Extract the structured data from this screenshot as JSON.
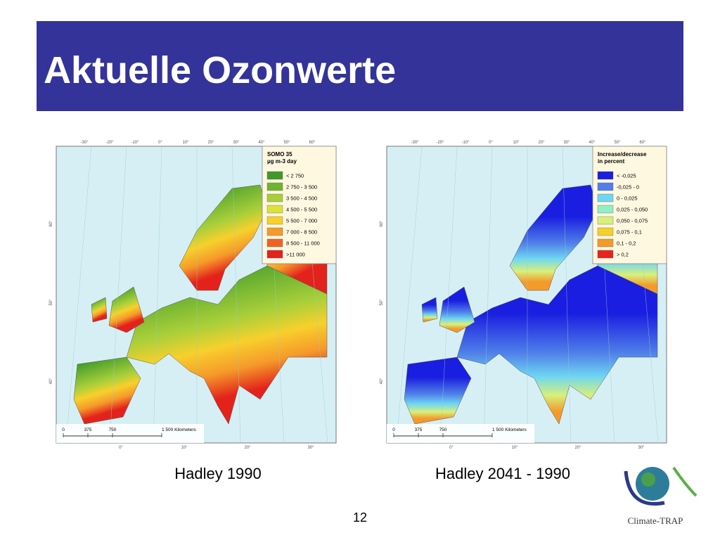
{
  "title": "Aktuelle Ozonwerte",
  "page_number": "12",
  "logo_text": "Climate-TRAP",
  "maps": [
    {
      "caption": "Hadley 1990",
      "legend_title": [
        "SOMO 35",
        "µg m-3 day"
      ],
      "legend": [
        {
          "label": "< 2 750",
          "color": "#3e9a2a"
        },
        {
          "label": "2 750 - 3 500",
          "color": "#6fb42c"
        },
        {
          "label": "3 500 - 4 500",
          "color": "#a8cf3a"
        },
        {
          "label": "4 500 - 5 500",
          "color": "#dde23a"
        },
        {
          "label": "5 500 - 7 000",
          "color": "#f7d02c"
        },
        {
          "label": "7 000 - 8 500",
          "color": "#f59a2a"
        },
        {
          "label": "8 500 - 11 000",
          "color": "#ee6325"
        },
        {
          "label": ">11 000",
          "color": "#e3221c"
        }
      ],
      "top_labels": [
        "-30°",
        "-20°",
        "-10°",
        "0°",
        "10°",
        "20°",
        "30°",
        "40°",
        "50°",
        "60°"
      ],
      "bottom_labels": [
        "0°",
        "10°",
        "20°",
        "30°"
      ],
      "side_labels": [
        "60°",
        "50°",
        "40°"
      ],
      "scale_labels": [
        "0",
        "375",
        "750",
        "1 500 Kilometers"
      ]
    },
    {
      "caption": "Hadley 2041 - 1990",
      "legend_title": [
        "Increase/decrease",
        "in percent"
      ],
      "legend": [
        {
          "label": "< -0,025",
          "color": "#1a1ee0"
        },
        {
          "label": "-0,025 - 0",
          "color": "#4f7fe8"
        },
        {
          "label": "0 - 0,025",
          "color": "#6fd6f2"
        },
        {
          "label": "0,025 - 0,050",
          "color": "#8ff0c6"
        },
        {
          "label": "0,050 - 0,075",
          "color": "#d8f07a"
        },
        {
          "label": "0,075 - 0,1",
          "color": "#f6d02a"
        },
        {
          "label": "0,1 - 0,2",
          "color": "#f39a2a"
        },
        {
          "label": "> 0,2",
          "color": "#e8221c"
        }
      ],
      "top_labels": [
        "-30°",
        "-20°",
        "-10°",
        "0°",
        "10°",
        "20°",
        "30°",
        "40°",
        "50°",
        "60°"
      ],
      "bottom_labels": [
        "0°",
        "10°",
        "20°",
        "30°"
      ],
      "side_labels": [
        "60°",
        "50°",
        "40°"
      ],
      "scale_labels": [
        "0",
        "375",
        "750",
        "1 500 Kilometers"
      ]
    }
  ]
}
